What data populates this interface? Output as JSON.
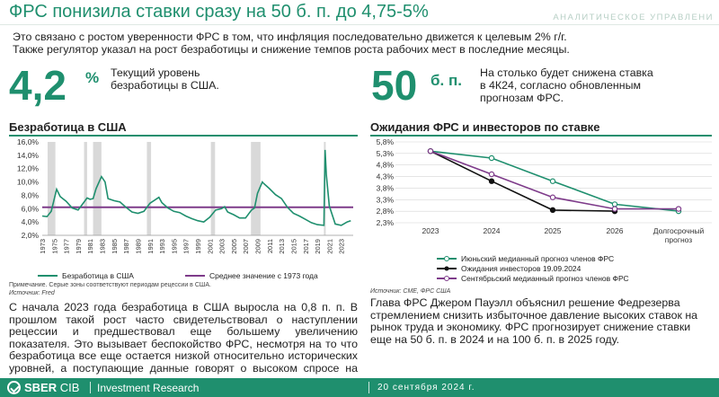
{
  "header": {
    "title": "ФРС понизила ставки сразу на 50 б. п. до 4,75-5%",
    "department": "АНАЛИТИЧЕСКОЕ УПРАВЛЕНИ"
  },
  "intro": {
    "line1": "Это связано с ростом уверенности ФРС в том, что инфляция последовательно движется к целевым 2% г/г.",
    "line2": "Также регулятор указал на рост безработицы и снижение темпов роста рабочих мест в последние месяцы."
  },
  "stats": {
    "unemployment_value": "4,2",
    "unemployment_unit": "%",
    "unemployment_text": "Текущий уровень безработицы в США.",
    "cut_value": "50",
    "cut_unit": "б. п.",
    "cut_text": "На столько будет снижена ставка в 4К24, согласно обновленным прогнозам ФРС."
  },
  "colors": {
    "accent": "#1f8f6e",
    "purple": "#7e3b8a",
    "black": "#111111",
    "recession": "#d9d9d9"
  },
  "left_chart": {
    "title": "Безработица в США",
    "legend_unemp": "Безработица в США",
    "legend_avg": "Среднее значение с 1973 года",
    "note": "Примечание. Серые зоны соответствуют периодам рецессии в США.",
    "source": "Источник: Fred"
  },
  "right_chart": {
    "title": "Ожидания ФРС и инвесторов по ставке",
    "legend_june": "Июньский медианный прогноз членов ФРС",
    "legend_investors": "Ожидания инвесторов 19.09.2024",
    "legend_sept": "Сентябрьский медианный прогноз членов ФРС",
    "source": "Источник: CME, ФРС США"
  },
  "paragraphs": {
    "left": "С начала 2023 года безработица в США выросла на 0,8 п. п. В прошлом такой рост часто свидетельствовал о наступлении рецессии и предшествовал еще большему увеличению показателя. Это вызывает беспокойство ФРС, несмотря на то что безработица все еще остается низкой относительно исторических уровней, а поступающие данные говорят о высоком спросе на рынке труда.",
    "right": "Глава ФРС Джером Пауэлл объяснил решение Федрезерва стремлением снизить избыточное давление высоких ставок на рынок труда и экономику. ФРС прогнозирует снижение ставки еще на 50 б. п. в 2024 и на 100 б. п. в 2025 году."
  },
  "footer": {
    "brand": "SBER",
    "brand_sub": "CIB",
    "research": "Investment Research",
    "date": "20 сентября 2024 г."
  },
  "chart_data": [
    {
      "type": "line",
      "title": "Безработица в США",
      "xlim": [
        1973,
        2025
      ],
      "ylim": [
        2,
        16
      ],
      "y_ticks": [
        "2,0%",
        "4,0%",
        "6,0%",
        "8,0%",
        "10,0%",
        "12,0%",
        "14,0%",
        "16,0%"
      ],
      "x_ticks": [
        "1973",
        "1975",
        "1977",
        "1979",
        "1981",
        "1983",
        "1985",
        "1987",
        "1989",
        "1991",
        "1993",
        "1995",
        "1997",
        "1999",
        "2001",
        "2003",
        "2005",
        "2007",
        "2009",
        "2011",
        "2013",
        "2015",
        "2017",
        "2019",
        "2021",
        "2023"
      ],
      "recessions": [
        [
          1973.9,
          1975.2
        ],
        [
          1980.0,
          1980.5
        ],
        [
          1981.5,
          1982.9
        ],
        [
          1990.5,
          1991.2
        ],
        [
          2001.2,
          2001.9
        ],
        [
          2007.9,
          2009.5
        ],
        [
          2020.1,
          2020.4
        ]
      ],
      "series": [
        {
          "name": "Безработица в США",
          "x": [
            1973,
            1973.8,
            1974.5,
            1975.4,
            1976,
            1977,
            1978,
            1979,
            1980,
            1980.5,
            1981,
            1981.5,
            1982,
            1982.9,
            1983.5,
            1984,
            1985,
            1986,
            1987,
            1988,
            1989,
            1990,
            1991,
            1992.5,
            1993,
            1994,
            1995,
            1996,
            1997,
            1998,
            1999,
            2000,
            2001,
            2002,
            2003,
            2003.5,
            2004,
            2005,
            2006,
            2007,
            2008,
            2008.5,
            2009,
            2009.8,
            2010,
            2011,
            2012,
            2013,
            2014,
            2015,
            2016,
            2017,
            2018,
            2019,
            2020.1,
            2020.3,
            2020.5,
            2021,
            2022,
            2023,
            2024,
            2024.6
          ],
          "values": [
            4.9,
            4.8,
            5.6,
            8.9,
            7.8,
            7.1,
            6.1,
            5.8,
            7.0,
            7.6,
            7.4,
            7.5,
            9.0,
            10.8,
            10.0,
            7.5,
            7.2,
            7.0,
            6.2,
            5.5,
            5.3,
            5.6,
            6.8,
            7.7,
            6.9,
            6.1,
            5.6,
            5.4,
            4.9,
            4.5,
            4.2,
            4.0,
            4.7,
            5.8,
            6.0,
            6.3,
            5.5,
            5.1,
            4.6,
            4.6,
            5.8,
            6.1,
            8.3,
            10.0,
            9.8,
            9.0,
            8.1,
            7.5,
            6.2,
            5.3,
            4.9,
            4.4,
            3.9,
            3.6,
            3.5,
            14.8,
            11.1,
            6.4,
            3.7,
            3.5,
            4.0,
            4.2
          ]
        },
        {
          "name": "Среднее значение с 1973 года",
          "values": [
            6.2
          ]
        }
      ]
    },
    {
      "type": "line",
      "title": "Ожидания ФРС и инвесторов по ставке",
      "categories": [
        "2023",
        "2024",
        "2025",
        "2026",
        "Долгосрочный прогноз"
      ],
      "ylim": [
        2.3,
        5.8
      ],
      "y_ticks": [
        "2,3%",
        "2,8%",
        "3,3%",
        "3,8%",
        "4,3%",
        "4,8%",
        "5,3%",
        "5,8%"
      ],
      "series": [
        {
          "name": "Июньский медианный прогноз членов ФРС",
          "values": [
            5.4,
            5.1,
            4.1,
            3.1,
            2.8
          ]
        },
        {
          "name": "Ожидания инвесторов 19.09.2024",
          "values": [
            5.4,
            4.1,
            2.85,
            2.8,
            null
          ]
        },
        {
          "name": "Сентябрьский медианный прогноз членов ФРС",
          "values": [
            5.4,
            4.4,
            3.4,
            2.9,
            2.9
          ]
        }
      ]
    }
  ]
}
